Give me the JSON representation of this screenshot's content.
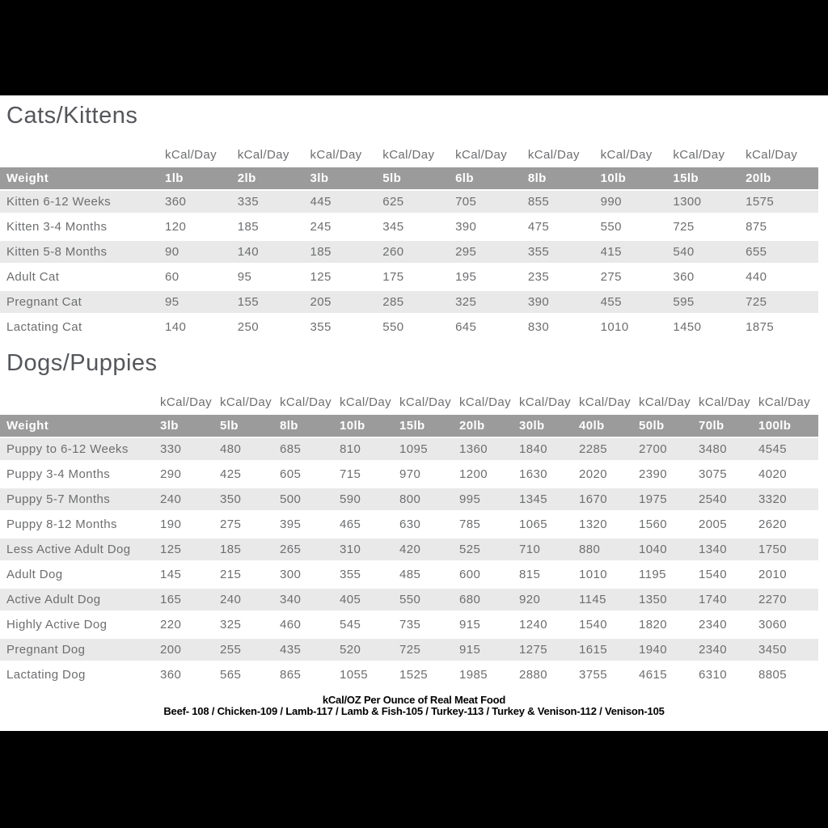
{
  "cats": {
    "title": "Cats/Kittens",
    "kcal_header": "kCal/Day",
    "weight_header": "Weight",
    "weights": [
      "1lb",
      "2lb",
      "3lb",
      "5lb",
      "6lb",
      "8lb",
      "10lb",
      "15lb",
      "20lb"
    ],
    "rows": [
      {
        "label": "Kitten 6-12 Weeks",
        "values": [
          "360",
          "335",
          "445",
          "625",
          "705",
          "855",
          "990",
          "1300",
          "1575"
        ]
      },
      {
        "label": "Kitten 3-4 Months",
        "values": [
          "120",
          "185",
          "245",
          "345",
          "390",
          "475",
          "550",
          "725",
          "875"
        ]
      },
      {
        "label": "Kitten 5-8 Months",
        "values": [
          "90",
          "140",
          "185",
          "260",
          "295",
          "355",
          "415",
          "540",
          "655"
        ]
      },
      {
        "label": "Adult Cat",
        "values": [
          "60",
          "95",
          "125",
          "175",
          "195",
          "235",
          "275",
          "360",
          "440"
        ]
      },
      {
        "label": "Pregnant Cat",
        "values": [
          "95",
          "155",
          "205",
          "285",
          "325",
          "390",
          "455",
          "595",
          "725"
        ]
      },
      {
        "label": "Lactating Cat",
        "values": [
          "140",
          "250",
          "355",
          "550",
          "645",
          "830",
          "1010",
          "1450",
          "1875"
        ]
      }
    ]
  },
  "dogs": {
    "title": "Dogs/Puppies",
    "kcal_header": "kCal/Day",
    "weight_header": "Weight",
    "weights": [
      "3lb",
      "5lb",
      "8lb",
      "10lb",
      "15lb",
      "20lb",
      "30lb",
      "40lb",
      "50lb",
      "70lb",
      "100lb"
    ],
    "rows": [
      {
        "label": "Puppy to 6-12 Weeks",
        "values": [
          "330",
          "480",
          "685",
          "810",
          "1095",
          "1360",
          "1840",
          "2285",
          "2700",
          "3480",
          "4545"
        ]
      },
      {
        "label": "Puppy 3-4 Months",
        "values": [
          "290",
          "425",
          "605",
          "715",
          "970",
          "1200",
          "1630",
          "2020",
          "2390",
          "3075",
          "4020"
        ]
      },
      {
        "label": "Puppy 5-7 Months",
        "values": [
          "240",
          "350",
          "500",
          "590",
          "800",
          "995",
          "1345",
          "1670",
          "1975",
          "2540",
          "3320"
        ]
      },
      {
        "label": "Puppy 8-12 Months",
        "values": [
          "190",
          "275",
          "395",
          "465",
          "630",
          "785",
          "1065",
          "1320",
          "1560",
          "2005",
          "2620"
        ]
      },
      {
        "label": "Less Active Adult Dog",
        "values": [
          "125",
          "185",
          "265",
          "310",
          "420",
          "525",
          "710",
          "880",
          "1040",
          "1340",
          "1750"
        ]
      },
      {
        "label": "Adult Dog",
        "values": [
          "145",
          "215",
          "300",
          "355",
          "485",
          "600",
          "815",
          "1010",
          "1195",
          "1540",
          "2010"
        ]
      },
      {
        "label": "Active Adult Dog",
        "values": [
          "165",
          "240",
          "340",
          "405",
          "550",
          "680",
          "920",
          "1145",
          "1350",
          "1740",
          "2270"
        ]
      },
      {
        "label": "Highly Active Dog",
        "values": [
          "220",
          "325",
          "460",
          "545",
          "735",
          "915",
          "1240",
          "1540",
          "1820",
          "2340",
          "3060"
        ]
      },
      {
        "label": "Pregnant Dog",
        "values": [
          "200",
          "255",
          "435",
          "520",
          "725",
          "915",
          "1275",
          "1615",
          "1940",
          "2340",
          "3450"
        ]
      },
      {
        "label": "Lactating Dog",
        "values": [
          "360",
          "565",
          "865",
          "1055",
          "1525",
          "1985",
          "2880",
          "3755",
          "4615",
          "6310",
          "8805"
        ]
      }
    ]
  },
  "footer": {
    "line1": "kCal/OZ Per Ounce of Real Meat Food",
    "line2": "Beef- 108 / Chicken-109 / Lamb-117 / Lamb & Fish-105 / Turkey-113 / Turkey & Venison-112 / Venison-105"
  },
  "colors": {
    "header_row_bg": "#9b9b9b",
    "stripe_bg": "#e9e9e9",
    "table_text": "#6d6e70",
    "title_text": "#54565a",
    "letterbox": "#000000"
  }
}
